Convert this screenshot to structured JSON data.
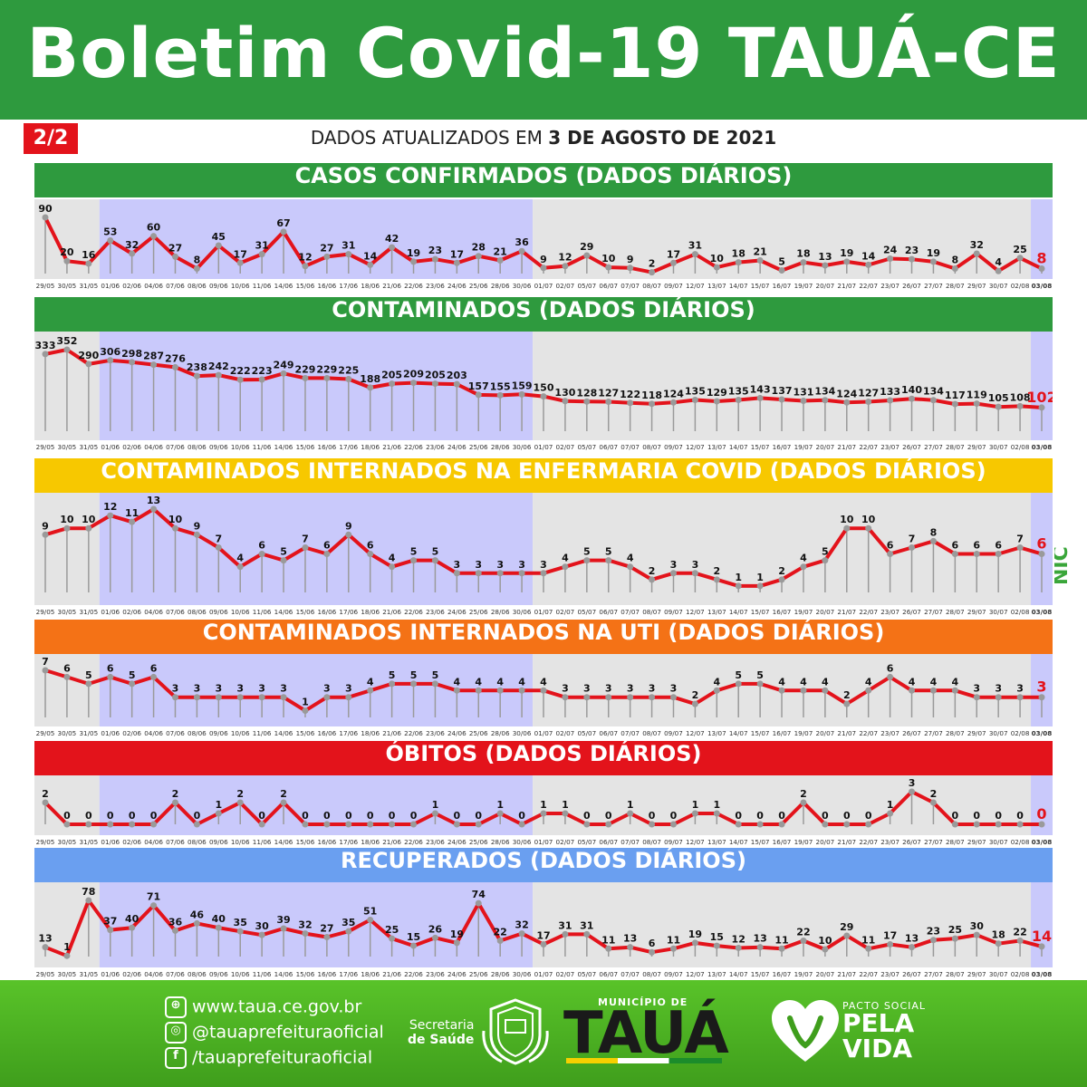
{
  "header": {
    "title": "Boletim Covid-19 TAUÁ-CE",
    "page_badge": "2/2",
    "update_prefix": "DADOS ATUALIZADOS EM ",
    "update_date": "3 DE AGOSTO DE 2021"
  },
  "colors": {
    "green": "#2e9a3e",
    "yellow": "#f7c800",
    "orange": "#f47216",
    "red": "#e3131b",
    "blue": "#6a9ff0",
    "line": "#e3131b",
    "marker": "#9a9a9a",
    "shade_purple": "#c9c9fb",
    "shade_gray": "#e4e4e4"
  },
  "chart_data": {
    "type": "line",
    "dates": [
      "29/05",
      "30/05",
      "31/05",
      "01/06",
      "02/06",
      "04/06",
      "07/06",
      "08/06",
      "09/06",
      "10/06",
      "11/06",
      "14/06",
      "15/06",
      "16/06",
      "17/06",
      "18/06",
      "21/06",
      "22/06",
      "23/06",
      "24/06",
      "25/06",
      "28/06",
      "30/06",
      "01/07",
      "02/07",
      "05/07",
      "06/07",
      "07/07",
      "08/07",
      "09/07",
      "12/07",
      "13/07",
      "14/07",
      "15/07",
      "16/07",
      "19/07",
      "20/07",
      "21/07",
      "22/07",
      "23/07",
      "26/07",
      "27/07",
      "28/07",
      "29/07",
      "30/07",
      "02/08",
      "03/08"
    ],
    "series": [
      {
        "name": "CASOS CONFIRMADOS  (DADOS DIÁRIOS)",
        "values": [
          90,
          20,
          16,
          53,
          32,
          60,
          27,
          8,
          45,
          17,
          31,
          67,
          12,
          27,
          31,
          14,
          42,
          19,
          23,
          17,
          28,
          21,
          36,
          9,
          12,
          29,
          10,
          9,
          2,
          17,
          31,
          10,
          18,
          21,
          5,
          18,
          13,
          19,
          14,
          24,
          23,
          19,
          8,
          32,
          4,
          25,
          8
        ]
      },
      {
        "name": "CONTAMINADOS  (DADOS DIÁRIOS)",
        "values": [
          333,
          352,
          290,
          306,
          298,
          287,
          276,
          238,
          242,
          222,
          223,
          249,
          229,
          229,
          225,
          188,
          205,
          209,
          205,
          203,
          157,
          155,
          159,
          150,
          130,
          128,
          127,
          122,
          118,
          124,
          135,
          129,
          135,
          143,
          137,
          131,
          134,
          124,
          127,
          133,
          140,
          134,
          117,
          119,
          105,
          108,
          102
        ]
      },
      {
        "name": "CONTAMINADOS INTERNADOS NA ENFERMARIA COVID  (DADOS DIÁRIOS)",
        "values": [
          9,
          10,
          10,
          12,
          11,
          13,
          10,
          9,
          7,
          4,
          6,
          5,
          7,
          6,
          9,
          6,
          4,
          5,
          5,
          3,
          3,
          3,
          3,
          3,
          4,
          5,
          5,
          4,
          2,
          3,
          3,
          2,
          1,
          1,
          2,
          4,
          5,
          10,
          10,
          6,
          7,
          8,
          6,
          6,
          6,
          7,
          6
        ]
      },
      {
        "name": "CONTAMINADOS INTERNADOS NA UTI  (DADOS DIÁRIOS)",
        "values": [
          7,
          6,
          5,
          6,
          5,
          6,
          3,
          3,
          3,
          3,
          3,
          3,
          1,
          3,
          3,
          4,
          5,
          5,
          5,
          4,
          4,
          4,
          4,
          4,
          3,
          3,
          3,
          3,
          3,
          3,
          2,
          4,
          5,
          5,
          4,
          4,
          4,
          2,
          4,
          6,
          4,
          4,
          4,
          3,
          3,
          3,
          3
        ]
      },
      {
        "name": "ÓBITOS  (DADOS DIÁRIOS)",
        "values": [
          2,
          0,
          0,
          0,
          0,
          0,
          2,
          0,
          1,
          2,
          0,
          2,
          0,
          0,
          0,
          0,
          0,
          0,
          1,
          0,
          0,
          1,
          0,
          1,
          1,
          0,
          0,
          1,
          0,
          0,
          1,
          1,
          0,
          0,
          0,
          2,
          0,
          0,
          0,
          1,
          3,
          2,
          0,
          0,
          0,
          0,
          0
        ]
      },
      {
        "name": "RECUPERADOS (DADOS DIÁRIOS)",
        "values": [
          13,
          1,
          78,
          37,
          40,
          71,
          36,
          46,
          40,
          35,
          30,
          39,
          32,
          27,
          35,
          51,
          25,
          15,
          26,
          19,
          74,
          22,
          32,
          17,
          31,
          31,
          11,
          13,
          6,
          11,
          19,
          15,
          12,
          13,
          11,
          22,
          10,
          29,
          11,
          17,
          13,
          23,
          25,
          30,
          18,
          22,
          14
        ]
      }
    ]
  },
  "footer": {
    "website": "www.taua.ce.gov.br",
    "instagram": "@tauaprefeituraoficial",
    "facebook": "/tauaprefeituraoficial",
    "secretaria_line1": "Secretaria",
    "secretaria_line2": "de Saúde",
    "municipio": "MUNICÍPIO DE",
    "taua": "TAUÁ",
    "pacto_top": "PACTO SOCIAL",
    "pacto_pela": "PELA",
    "pacto_vida": "VIDA",
    "nic_logo": "NIC"
  }
}
